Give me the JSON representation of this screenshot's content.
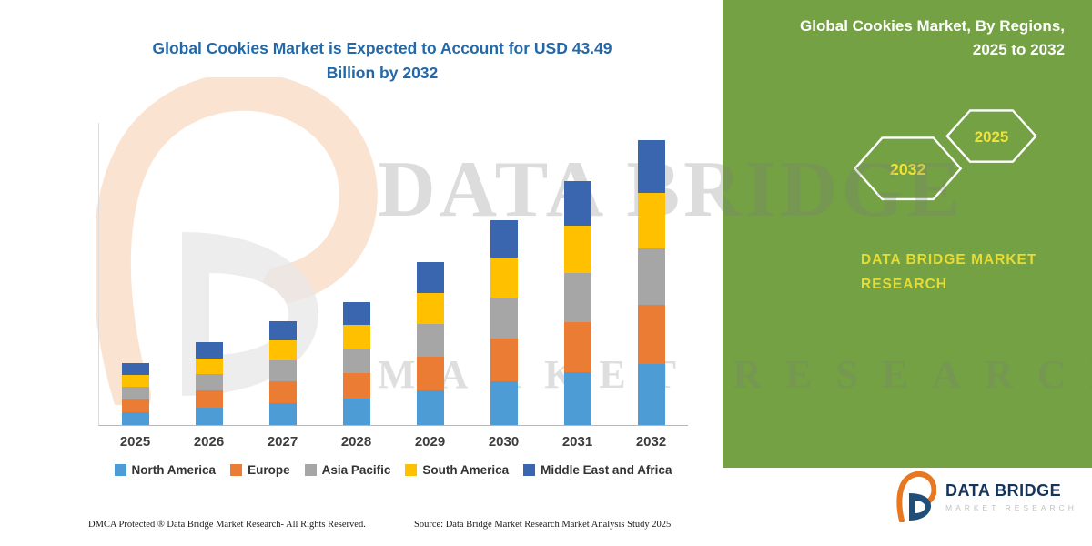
{
  "title": {
    "line1": "Global Cookies Market is Expected to Account for USD 43.49",
    "line2": "Billion by 2032"
  },
  "side_panel": {
    "heading_line1": "Global Cookies Market, By Regions,",
    "heading_line2": "2025 to 2032",
    "hexagon_back_label": "2032",
    "hexagon_front_label": "2025",
    "brand_line1": "DATA BRIDGE MARKET",
    "brand_line2": "RESEARCH",
    "bg_color": "#73A143",
    "accent_color": "#E7DB35"
  },
  "watermark": {
    "line1": "DATA BRIDGE",
    "line2": "MARKET RESEARCH"
  },
  "footer": {
    "dmca": "DMCA Protected ® Data Bridge Market Research-  All Rights Reserved.",
    "source": "Source: Data Bridge Market Research  Market Analysis Study 2025"
  },
  "logo": {
    "name": "DATA BRIDGE",
    "subtitle": "MARKET RESEARCH"
  },
  "chart_data": {
    "type": "bar",
    "stacked": true,
    "title": "Global Cookies Market is Expected to Account for USD 43.49 Billion by 2032",
    "categories": [
      "2025",
      "2026",
      "2027",
      "2028",
      "2029",
      "2030",
      "2031",
      "2032"
    ],
    "series": [
      {
        "name": "North America",
        "color": "#4E9CD5",
        "values": [
          2.0,
          2.7,
          3.4,
          4.0,
          5.3,
          6.7,
          8.0,
          9.3
        ]
      },
      {
        "name": "Europe",
        "color": "#EA7D33",
        "values": [
          1.9,
          2.6,
          3.3,
          3.9,
          5.1,
          6.5,
          7.7,
          9.0
        ]
      },
      {
        "name": "Asia Pacific",
        "color": "#A6A6A6",
        "values": [
          1.9,
          2.5,
          3.2,
          3.8,
          5.0,
          6.3,
          7.5,
          8.7
        ]
      },
      {
        "name": "South America",
        "color": "#FFC000",
        "values": [
          1.8,
          2.4,
          3.0,
          3.6,
          4.8,
          6.0,
          7.2,
          8.4
        ]
      },
      {
        "name": "Middle East and Africa",
        "color": "#3A66B0",
        "values": [
          1.8,
          2.4,
          3.0,
          3.5,
          4.6,
          5.8,
          6.9,
          8.09
        ]
      }
    ],
    "totals": [
      9.4,
      12.6,
      15.9,
      18.8,
      24.8,
      31.3,
      37.3,
      43.49
    ],
    "ylim": [
      0,
      45
    ],
    "grid": false,
    "legend_position": "bottom"
  }
}
